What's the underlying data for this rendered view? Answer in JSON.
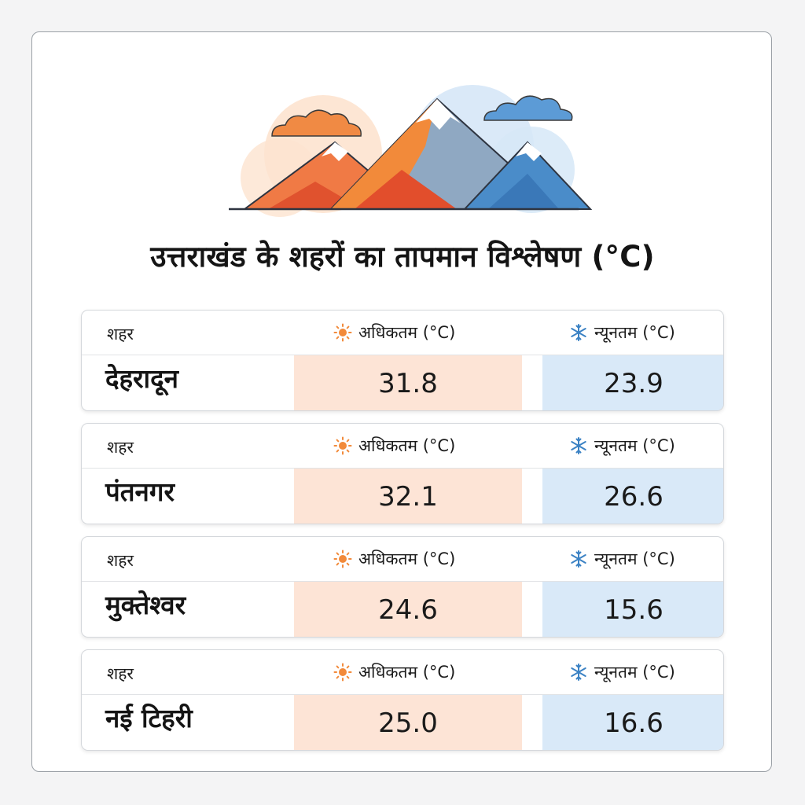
{
  "title": "उत्तराखंड के शहरों का तापमान विश्लेषण (°C)",
  "icons": {
    "header_illustration": "mountains-clouds-illustration",
    "max_icon": "sun-icon",
    "min_icon": "snowflake-icon"
  },
  "colors": {
    "max_cell_bg": "#fde4d6",
    "min_cell_bg": "#d9e9f8",
    "sun": "#f28a3a",
    "snow": "#3b82c4"
  },
  "columns": {
    "city": "शहर",
    "max": "अधिकतम (°C)",
    "min": "न्यूनतम (°C)"
  },
  "rows": [
    {
      "city": "देहरादून",
      "max": "31.8",
      "min": "23.9"
    },
    {
      "city": "पंतनगर",
      "max": "32.1",
      "min": "26.6"
    },
    {
      "city": "मुक्तेश्वर",
      "max": "24.6",
      "min": "15.6"
    },
    {
      "city": "नई टिहरी",
      "max": "25.0",
      "min": "16.6"
    }
  ]
}
